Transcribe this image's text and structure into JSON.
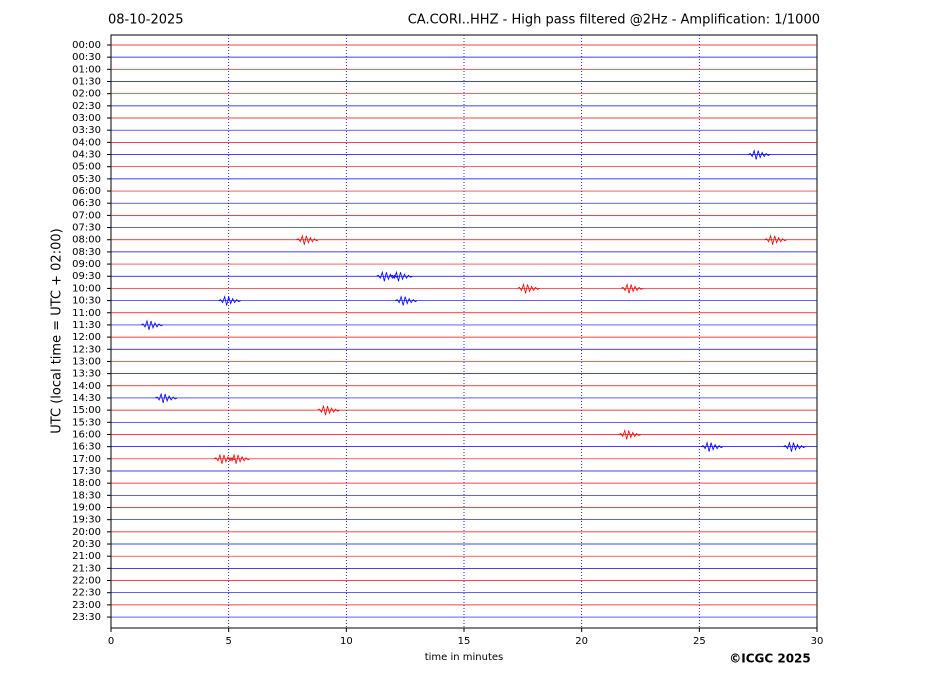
{
  "chart_data": {
    "type": "helicorder",
    "date": "08-10-2025",
    "title": "CA.CORI..HHZ - High pass filtered @2Hz - Amplification: 1/1000",
    "xlabel": "time in minutes",
    "ylabel": "UTC (local time = UTC + 02:00)",
    "copyright": "©ICGC 2025",
    "xlim": [
      0,
      30
    ],
    "xticks": [
      0,
      5,
      10,
      15,
      20,
      25,
      30
    ],
    "ylim": [
      -0.41,
      23.95
    ],
    "y_inverted": true,
    "grid": true,
    "trace_colors": [
      "#ff0000",
      "#0000ff"
    ],
    "yticks": [
      {
        "value": 0,
        "label": "00:00"
      },
      {
        "value": 0.5,
        "label": "00:30"
      },
      {
        "value": 1,
        "label": "01:00"
      },
      {
        "value": 1.5,
        "label": "01:30"
      },
      {
        "value": 2,
        "label": "02:00"
      },
      {
        "value": 2.5,
        "label": "02:30"
      },
      {
        "value": 3,
        "label": "03:00"
      },
      {
        "value": 3.5,
        "label": "03:30"
      },
      {
        "value": 4,
        "label": "04:00"
      },
      {
        "value": 4.5,
        "label": "04:30"
      },
      {
        "value": 5,
        "label": "05:00"
      },
      {
        "value": 5.5,
        "label": "05:30"
      },
      {
        "value": 6,
        "label": "06:00"
      },
      {
        "value": 6.5,
        "label": "06:30"
      },
      {
        "value": 7,
        "label": "07:00"
      },
      {
        "value": 7.5,
        "label": "07:30"
      },
      {
        "value": 8,
        "label": "08:00"
      },
      {
        "value": 8.5,
        "label": "08:30"
      },
      {
        "value": 9,
        "label": "09:00"
      },
      {
        "value": 9.5,
        "label": "09:30"
      },
      {
        "value": 10,
        "label": "10:00"
      },
      {
        "value": 10.5,
        "label": "10:30"
      },
      {
        "value": 11,
        "label": "11:00"
      },
      {
        "value": 11.5,
        "label": "11:30"
      },
      {
        "value": 12,
        "label": "12:00"
      },
      {
        "value": 12.5,
        "label": "12:30"
      },
      {
        "value": 13,
        "label": "13:00"
      },
      {
        "value": 13.5,
        "label": "13:30"
      },
      {
        "value": 14,
        "label": "14:00"
      },
      {
        "value": 14.5,
        "label": "14:30"
      },
      {
        "value": 15,
        "label": "15:00"
      },
      {
        "value": 15.5,
        "label": "15:30"
      },
      {
        "value": 16,
        "label": "16:00"
      },
      {
        "value": 16.5,
        "label": "16:30"
      },
      {
        "value": 17,
        "label": "17:00"
      },
      {
        "value": 17.5,
        "label": "17:30"
      },
      {
        "value": 18,
        "label": "18:00"
      },
      {
        "value": 18.5,
        "label": "18:30"
      },
      {
        "value": 19,
        "label": "19:00"
      },
      {
        "value": 19.5,
        "label": "19:30"
      },
      {
        "value": 20,
        "label": "20:00"
      },
      {
        "value": 20.5,
        "label": "20:30"
      },
      {
        "value": 21,
        "label": "21:00"
      },
      {
        "value": 21.5,
        "label": "21:30"
      },
      {
        "value": 22,
        "label": "22:00"
      },
      {
        "value": 22.5,
        "label": "22:30"
      },
      {
        "value": 23,
        "label": "23:00"
      },
      {
        "value": 23.5,
        "label": "23:30"
      }
    ],
    "events": [
      {
        "row": 4.5,
        "x": 27.5
      },
      {
        "row": 8,
        "x": 8.3
      },
      {
        "row": 8,
        "x": 28.2
      },
      {
        "row": 9.5,
        "x": 11.7
      },
      {
        "row": 9.5,
        "x": 12.3
      },
      {
        "row": 10,
        "x": 17.7
      },
      {
        "row": 10,
        "x": 22.1
      },
      {
        "row": 10.5,
        "x": 5
      },
      {
        "row": 10.5,
        "x": 12.5
      },
      {
        "row": 11.5,
        "x": 1.7
      },
      {
        "row": 14.5,
        "x": 2.3
      },
      {
        "row": 15,
        "x": 9.2
      },
      {
        "row": 16,
        "x": 22
      },
      {
        "row": 16.5,
        "x": 25.5
      },
      {
        "row": 16.5,
        "x": 29
      },
      {
        "row": 17,
        "x": 4.8
      },
      {
        "row": 17,
        "x": 5.4
      }
    ]
  }
}
